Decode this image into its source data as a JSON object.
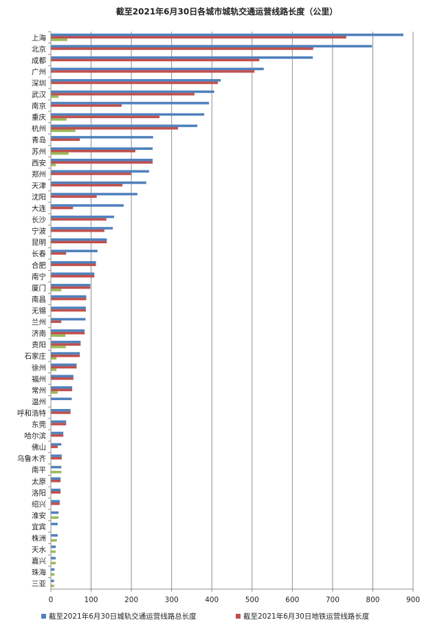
{
  "chart_data": {
    "type": "bar",
    "orientation": "horizontal",
    "title": "截至2021年6月30日各城市城轨交通运营线路长度（公里）",
    "categories": [
      "上海",
      "北京",
      "成都",
      "广州",
      "深圳",
      "武汉",
      "南京",
      "重庆",
      "杭州",
      "青岛",
      "苏州",
      "西安",
      "郑州",
      "天津",
      "沈阳",
      "大连",
      "长沙",
      "宁波",
      "昆明",
      "长春",
      "合肥",
      "南宁",
      "厦门",
      "南昌",
      "无锡",
      "兰州",
      "济南",
      "贵阳",
      "石家庄",
      "徐州",
      "福州",
      "常州",
      "温州",
      "呼和浩特",
      "东莞",
      "哈尔滨",
      "佛山",
      "乌鲁木齐",
      "南平",
      "太原",
      "洛阳",
      "绍兴",
      "淮安",
      "宜宾",
      "株洲",
      "天水",
      "嘉兴",
      "珠海",
      "三亚"
    ],
    "series": [
      {
        "name": "截至2021年6月30日城轨交通运营线路总长度",
        "color": "#4F81BD",
        "values": [
          876,
          798,
          651,
          529,
          422,
          406,
          393,
          381,
          364,
          254,
          253,
          253,
          244,
          237,
          215,
          181,
          157,
          154,
          139,
          116,
          112,
          108,
          98,
          88,
          87,
          86,
          84,
          74,
          72,
          64,
          56,
          53,
          52,
          49,
          38,
          31,
          26,
          27,
          26,
          24,
          24,
          22,
          19,
          17,
          17,
          12,
          12,
          9,
          8
        ]
      },
      {
        "name": "截至2021年6月30日地铁运营线路长度",
        "color": "#C0504D",
        "values": [
          734,
          652,
          518,
          506,
          415,
          357,
          176,
          270,
          316,
          72,
          210,
          253,
          200,
          178,
          114,
          55,
          138,
          133,
          139,
          38,
          112,
          108,
          98,
          88,
          87,
          26,
          84,
          74,
          72,
          64,
          56,
          53,
          null,
          49,
          38,
          31,
          17,
          27,
          null,
          24,
          24,
          22,
          null,
          null,
          null,
          null,
          null,
          null,
          null
        ]
      },
      {
        "color": "#9BBB59",
        "values": [
          41,
          null,
          null,
          null,
          null,
          19,
          null,
          39,
          61,
          null,
          44,
          12,
          null,
          null,
          null,
          null,
          null,
          null,
          null,
          null,
          null,
          null,
          26,
          null,
          null,
          null,
          36,
          37,
          14,
          14,
          null,
          17,
          null,
          null,
          null,
          null,
          null,
          null,
          26,
          null,
          null,
          null,
          19,
          null,
          15,
          12,
          12,
          9,
          8
        ]
      }
    ],
    "xlim": [
      0,
      900
    ],
    "xticks": [
      "0",
      "100",
      "200",
      "300",
      "400",
      "500",
      "600",
      "700",
      "800",
      "900"
    ],
    "grid": true,
    "legend": "bottom"
  }
}
